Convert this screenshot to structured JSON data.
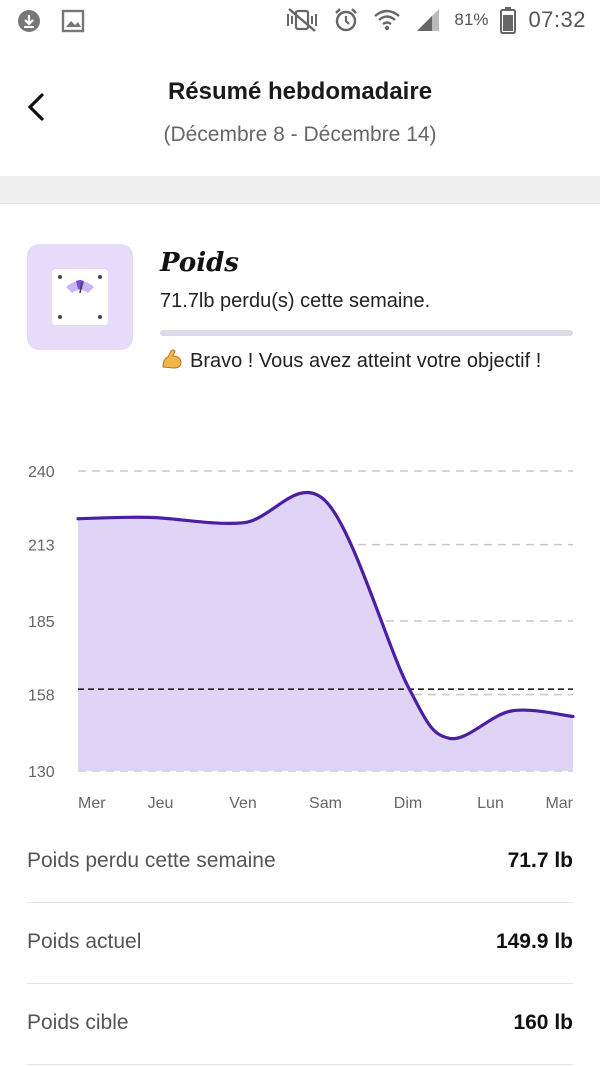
{
  "status_bar": {
    "battery_percent": "81%",
    "time": "07:32",
    "icons": [
      "cloud-download-icon",
      "image-icon",
      "vibrate-mute-icon",
      "alarm-icon",
      "wifi-icon",
      "signal-icon",
      "battery-icon"
    ]
  },
  "header": {
    "title": "Résumé hebdomadaire",
    "subtitle": "(Décembre 8 - Décembre 14)"
  },
  "summary": {
    "title": "Poids",
    "subtitle": "71.7lb perdu(s) cette semaine.",
    "progress_fraction": 1.0,
    "message": "Bravo ! Vous avez atteint votre objectif !",
    "icon": "scale-icon",
    "accent_color": "#5b2bb5",
    "tile_color": "#e6dcfa"
  },
  "chart_data": {
    "type": "area",
    "title": "",
    "xlabel": "",
    "ylabel": "",
    "categories": [
      "Mer",
      "Jeu",
      "Ven",
      "Sam",
      "Dim",
      "Lun",
      "Mar"
    ],
    "y_ticks": [
      240,
      213,
      185,
      158,
      130
    ],
    "ylim": [
      130,
      240
    ],
    "series": [
      {
        "name": "Poids",
        "points": [
          [
            0,
            222.5
          ],
          [
            0.87,
            223
          ],
          [
            2.0,
            221
          ],
          [
            3.0,
            229
          ],
          [
            4.0,
            161
          ],
          [
            4.5,
            142
          ],
          [
            5.25,
            152
          ],
          [
            6.0,
            150
          ]
        ]
      }
    ],
    "target_line": 160,
    "grid": true,
    "line_color": "#4b1fa3",
    "fill_color": "#e0d4f6"
  },
  "stats": [
    {
      "label": "Poids perdu cette semaine",
      "value": "71.7 lb"
    },
    {
      "label": "Poids actuel",
      "value": "149.9 lb"
    },
    {
      "label": "Poids cible",
      "value": "160 lb"
    }
  ]
}
